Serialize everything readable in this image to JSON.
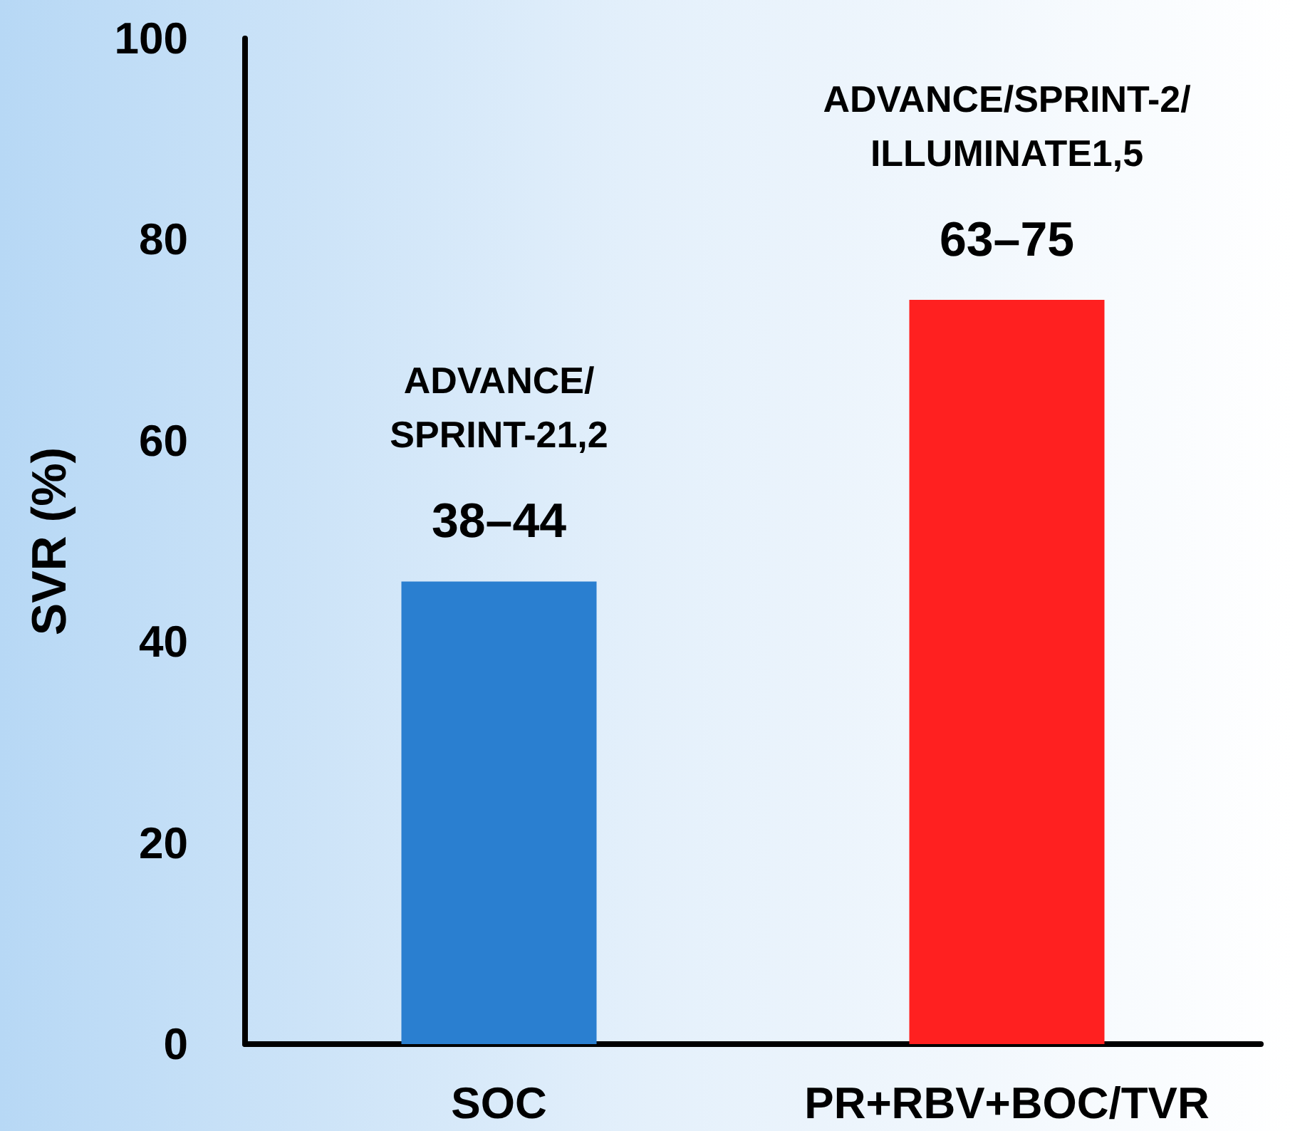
{
  "chart_data": {
    "type": "bar",
    "ylabel": "SVR (%)",
    "categories": [
      "SOC",
      "PR+RBV+BOC/TVR"
    ],
    "values": [
      46,
      74
    ],
    "colors": [
      "#2a7fd0",
      "#ff2020"
    ],
    "ylim": [
      0,
      100
    ],
    "yticks": [
      0,
      20,
      40,
      60,
      80,
      100
    ],
    "grid": false,
    "annotations": [
      "38–44",
      "ADVANCE/\nSPRINT-21,2",
      "63–75",
      "ADVANCE/SPRINT-2/\nILLUMINATE1,5"
    ]
  }
}
